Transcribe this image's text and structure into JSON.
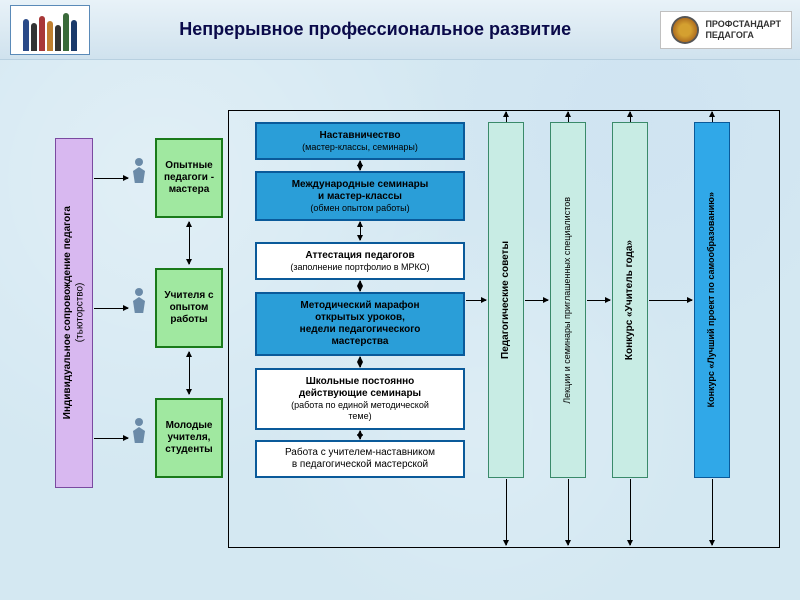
{
  "header": {
    "title": "Непрерывное профессиональное развитие",
    "badge_line1": "ПРОФСТАНДАРТ",
    "badge_line2": "ПЕДАГОГА",
    "people_colors": [
      "#2a4a88",
      "#333",
      "#a83838",
      "#c08030",
      "#333",
      "#3a6a3a",
      "#1a3a6a"
    ],
    "people_heights": [
      32,
      28,
      35,
      30,
      26,
      38,
      31
    ]
  },
  "colors": {
    "lilac": "#d8b8f0",
    "green": "#a0e8a0",
    "green_border": "#1a7a1a",
    "blue": "#2a9ed8",
    "blue_border": "#0a5a9a",
    "white": "#ffffff",
    "mint": "#c8ece4",
    "mint_border": "#3a8a6a",
    "cyan": "#30a8e8",
    "black": "#000"
  },
  "left": {
    "tutor_l1": "Индивидуальное сопровождение педагога",
    "tutor_l2": "(тьюторство)",
    "cat1_l1": "Опытные",
    "cat1_l2": "педагоги -",
    "cat1_l3": "мастера",
    "cat2_l1": "Учителя с",
    "cat2_l2": "опытом",
    "cat2_l3": "работы",
    "cat3_l1": "Молодые",
    "cat3_l2": "учителя,",
    "cat3_l3": "студенты"
  },
  "center": {
    "b1_l1": "Наставничество",
    "b1_l2": "(мастер-классы, семинары)",
    "b2_l1": "Международные семинары",
    "b2_l2": "и мастер-классы",
    "b2_l3": "(обмен опытом работы)",
    "b3_l1": "Аттестация педагогов",
    "b3_l2": "(заполнение портфолио в МРКО)",
    "b4_l1": "Методический марафон",
    "b4_l2": "открытых уроков,",
    "b4_l3": "недели педагогического",
    "b4_l4": "мастерства",
    "b5_l1": "Школьные постоянно",
    "b5_l2": "действующие семинары",
    "b5_l3": "(работа по единой методической",
    "b5_l4": "теме)",
    "b6_l1": "Работа с учителем-наставником",
    "b6_l2": "в педагогической мастерской"
  },
  "right": {
    "r1": "Педагогические советы",
    "r2": "Лекции и семинары приглашенных специалистов",
    "r3": "Конкурс «Учитель года»",
    "r4": "Конкурс «Лучший проект по самообразованию»"
  }
}
